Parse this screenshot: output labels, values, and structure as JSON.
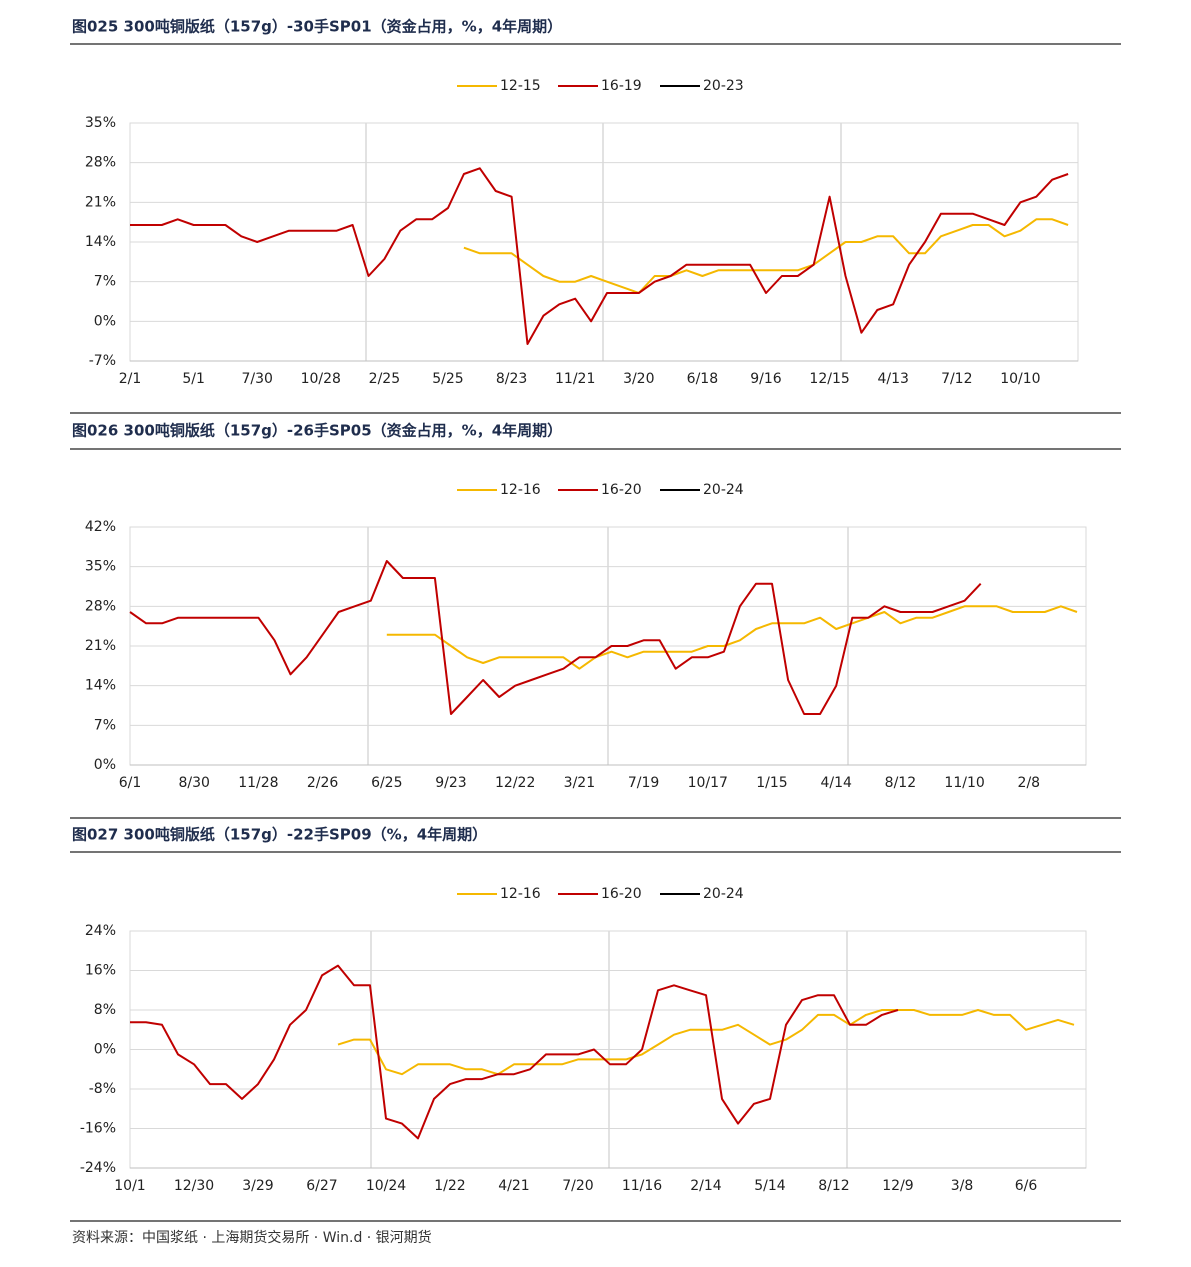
{
  "chart_data": [
    {
      "type": "line",
      "title": "图025 300吨铜版纸（157g）-30手SP01（资金占用，%，4年周期）",
      "categories": [
        "2/1",
        null,
        null,
        null,
        "5/1",
        null,
        null,
        null,
        "7/30",
        null,
        null,
        null,
        "10/28",
        null,
        null,
        null,
        "2/25",
        null,
        null,
        null,
        "5/25",
        null,
        null,
        null,
        "8/23",
        null,
        null,
        null,
        "11/21",
        null,
        null,
        null,
        "3/20",
        null,
        null,
        null,
        "6/18",
        null,
        null,
        null,
        "9/16",
        null,
        null,
        null,
        "12/15",
        null,
        null,
        null,
        "4/13",
        null,
        null,
        null,
        "7/12",
        null,
        null,
        null,
        "10/10",
        null,
        null,
        null
      ],
      "series": [
        {
          "name": "12-15",
          "color": "#f5b800",
          "values": [
            null,
            null,
            null,
            null,
            null,
            null,
            null,
            null,
            null,
            null,
            null,
            null,
            null,
            null,
            null,
            null,
            null,
            null,
            null,
            null,
            null,
            13,
            12,
            12,
            12,
            10,
            8,
            7,
            7,
            8,
            7,
            6,
            5,
            8,
            8,
            9,
            8,
            9,
            9,
            9,
            9,
            9,
            9,
            10,
            12,
            14,
            14,
            15,
            15,
            12,
            12,
            15,
            16,
            17,
            17,
            15,
            16,
            18,
            18,
            17
          ]
        },
        {
          "name": "16-19",
          "color": "#c00000",
          "values": [
            17,
            17,
            17,
            18,
            17,
            17,
            17,
            15,
            14,
            15,
            16,
            16,
            16,
            16,
            17,
            8,
            11,
            16,
            18,
            18,
            20,
            26,
            27,
            23,
            22,
            -4,
            1,
            3,
            4,
            0,
            5,
            5,
            5,
            7,
            8,
            10,
            10,
            10,
            10,
            10,
            5,
            8,
            8,
            10,
            22,
            8,
            -2,
            2,
            3,
            10,
            14,
            19,
            19,
            19,
            18,
            17,
            21,
            22,
            25,
            26
          ]
        },
        {
          "name": "20-23",
          "color": "#000000",
          "values": [
            null,
            null,
            null,
            null,
            null,
            null,
            null,
            null,
            null,
            null,
            null,
            null,
            null,
            null,
            null,
            null,
            null,
            null,
            null,
            null,
            null,
            null,
            null,
            null,
            null,
            null,
            null,
            null,
            null,
            null,
            null,
            null,
            null,
            null,
            null,
            null,
            null,
            null,
            null,
            null,
            null,
            null,
            null,
            null,
            null,
            null,
            null,
            null,
            null,
            null,
            null,
            null,
            null,
            null,
            null,
            null,
            null,
            null,
            null,
            null
          ]
        }
      ],
      "ylim": [
        -7,
        35
      ],
      "yticks": [
        {
          "value": -7,
          "label": "-7%"
        },
        {
          "value": 0,
          "label": "0%"
        },
        {
          "value": 7,
          "label": "7%"
        },
        {
          "value": 14,
          "label": "14%"
        },
        {
          "value": 21,
          "label": "21%"
        },
        {
          "value": 28,
          "label": "28%"
        },
        {
          "value": 35,
          "label": "35%"
        }
      ],
      "grid": true,
      "legend": "top"
    },
    {
      "type": "line",
      "title": "图026 300吨铜版纸（157g）-26手SP05（资金占用，%，4年周期）",
      "categories": [
        "6/1",
        null,
        null,
        null,
        "8/30",
        null,
        null,
        null,
        "11/28",
        null,
        null,
        null,
        "2/26",
        null,
        null,
        null,
        "6/25",
        null,
        null,
        null,
        "9/23",
        null,
        null,
        null,
        "12/22",
        null,
        null,
        null,
        "3/21",
        null,
        null,
        null,
        "7/19",
        null,
        null,
        null,
        "10/17",
        null,
        null,
        null,
        "1/15",
        null,
        null,
        null,
        "4/14",
        null,
        null,
        null,
        "8/12",
        null,
        null,
        null,
        "11/10",
        null,
        null,
        null,
        "2/8",
        null,
        null,
        null
      ],
      "series": [
        {
          "name": "12-16",
          "color": "#f5b800",
          "values": [
            null,
            null,
            null,
            null,
            null,
            null,
            null,
            null,
            null,
            null,
            null,
            null,
            null,
            null,
            null,
            null,
            23,
            23,
            23,
            23,
            21,
            19,
            18,
            19,
            19,
            19,
            19,
            19,
            17,
            19,
            20,
            19,
            20,
            20,
            20,
            20,
            21,
            21,
            22,
            24,
            25,
            25,
            25,
            26,
            24,
            25,
            26,
            27,
            25,
            26,
            26,
            27,
            28,
            28,
            28,
            27,
            27,
            27,
            28,
            27
          ]
        },
        {
          "name": "16-20",
          "color": "#c00000",
          "values": [
            27,
            25,
            25,
            26,
            26,
            26,
            26,
            26,
            26,
            22,
            16,
            19,
            23,
            27,
            28,
            29,
            36,
            33,
            33,
            33,
            9,
            12,
            15,
            12,
            14,
            15,
            16,
            17,
            19,
            19,
            21,
            21,
            22,
            22,
            17,
            19,
            19,
            20,
            28,
            32,
            32,
            15,
            9,
            9,
            14,
            26,
            26,
            28,
            27,
            27,
            27,
            28,
            29,
            32,
            null,
            null,
            null,
            null,
            null,
            null
          ]
        },
        {
          "name": "20-24",
          "color": "#000000",
          "values": [
            null,
            null,
            null,
            null,
            null,
            null,
            null,
            null,
            null,
            null,
            null,
            null,
            null,
            null,
            null,
            null,
            null,
            null,
            null,
            null,
            null,
            null,
            null,
            null,
            null,
            null,
            null,
            null,
            null,
            null,
            null,
            null,
            null,
            null,
            null,
            null,
            null,
            null,
            null,
            null,
            null,
            null,
            null,
            null,
            null,
            null,
            null,
            null,
            null,
            null,
            null,
            null,
            null,
            null,
            null,
            null,
            null,
            null,
            null,
            null
          ]
        }
      ],
      "ylim": [
        0,
        42
      ],
      "yticks": [
        {
          "value": 0,
          "label": "0%"
        },
        {
          "value": 7,
          "label": "7%"
        },
        {
          "value": 14,
          "label": "14%"
        },
        {
          "value": 21,
          "label": "21%"
        },
        {
          "value": 28,
          "label": "28%"
        },
        {
          "value": 35,
          "label": "35%"
        },
        {
          "value": 42,
          "label": "42%"
        }
      ],
      "grid": true,
      "legend": "top"
    },
    {
      "type": "line",
      "title": "图027 300吨铜版纸（157g）-22手SP09（%，4年周期）",
      "categories": [
        "10/1",
        null,
        null,
        null,
        "12/30",
        null,
        null,
        null,
        "3/29",
        null,
        null,
        null,
        "6/27",
        null,
        null,
        null,
        "10/24",
        null,
        null,
        null,
        "1/22",
        null,
        null,
        null,
        "4/21",
        null,
        null,
        null,
        "7/20",
        null,
        null,
        null,
        "11/16",
        null,
        null,
        null,
        "2/14",
        null,
        null,
        null,
        "5/14",
        null,
        null,
        null,
        "8/12",
        null,
        null,
        null,
        "12/9",
        null,
        null,
        null,
        "3/8",
        null,
        null,
        null,
        "6/6",
        null,
        null,
        null
      ],
      "series": [
        {
          "name": "12-16",
          "color": "#f5b800",
          "values": [
            null,
            null,
            null,
            null,
            null,
            null,
            null,
            null,
            null,
            null,
            null,
            null,
            null,
            1,
            2,
            2,
            -4,
            -5,
            -3,
            -3,
            -3,
            -4,
            -4,
            -5,
            -3,
            -3,
            -3,
            -3,
            -2,
            -2,
            -2,
            -2,
            -1,
            1,
            3,
            4,
            4,
            4,
            5,
            3,
            1,
            2,
            4,
            7,
            7,
            5,
            7,
            8,
            8,
            8,
            7,
            7,
            7,
            8,
            7,
            7,
            4,
            5,
            6,
            5
          ]
        },
        {
          "name": "16-20",
          "color": "#c00000",
          "values": [
            5.5,
            5.5,
            5,
            -1,
            -3,
            -7,
            -7,
            -10,
            -7,
            -2,
            5,
            8,
            15,
            17,
            13,
            13,
            -14,
            -15,
            -18,
            -10,
            -7,
            -6,
            -6,
            -5,
            -5,
            -4,
            -1,
            -1,
            -1,
            0,
            -3,
            -3,
            0,
            12,
            13,
            12,
            11,
            -10,
            -15,
            -11,
            -10,
            5,
            10,
            11,
            11,
            5,
            5,
            7,
            8,
            null,
            null,
            null,
            null,
            null,
            null,
            null,
            null,
            null,
            null,
            null
          ]
        },
        {
          "name": "20-24",
          "color": "#000000",
          "values": [
            null,
            null,
            null,
            null,
            null,
            null,
            null,
            null,
            null,
            null,
            null,
            null,
            null,
            null,
            null,
            null,
            null,
            null,
            null,
            null,
            null,
            null,
            null,
            null,
            null,
            null,
            null,
            null,
            null,
            null,
            null,
            null,
            null,
            null,
            null,
            null,
            null,
            null,
            null,
            null,
            null,
            null,
            null,
            null,
            null,
            null,
            null,
            null,
            null,
            null,
            null,
            null,
            null,
            null,
            null,
            null,
            null,
            null,
            null,
            null
          ]
        }
      ],
      "ylim": [
        -24,
        24
      ],
      "yticks": [
        {
          "value": -24,
          "label": "-24%"
        },
        {
          "value": -16,
          "label": "-16%"
        },
        {
          "value": -8,
          "label": "-8%"
        },
        {
          "value": 0,
          "label": "0%"
        },
        {
          "value": 8,
          "label": "8%"
        },
        {
          "value": 16,
          "label": "16%"
        },
        {
          "value": 24,
          "label": "24%"
        }
      ],
      "grid": true,
      "legend": "top"
    }
  ],
  "source": "资料来源：中国浆纸 · 上海期货交易所 · Win.d · 银河期货"
}
